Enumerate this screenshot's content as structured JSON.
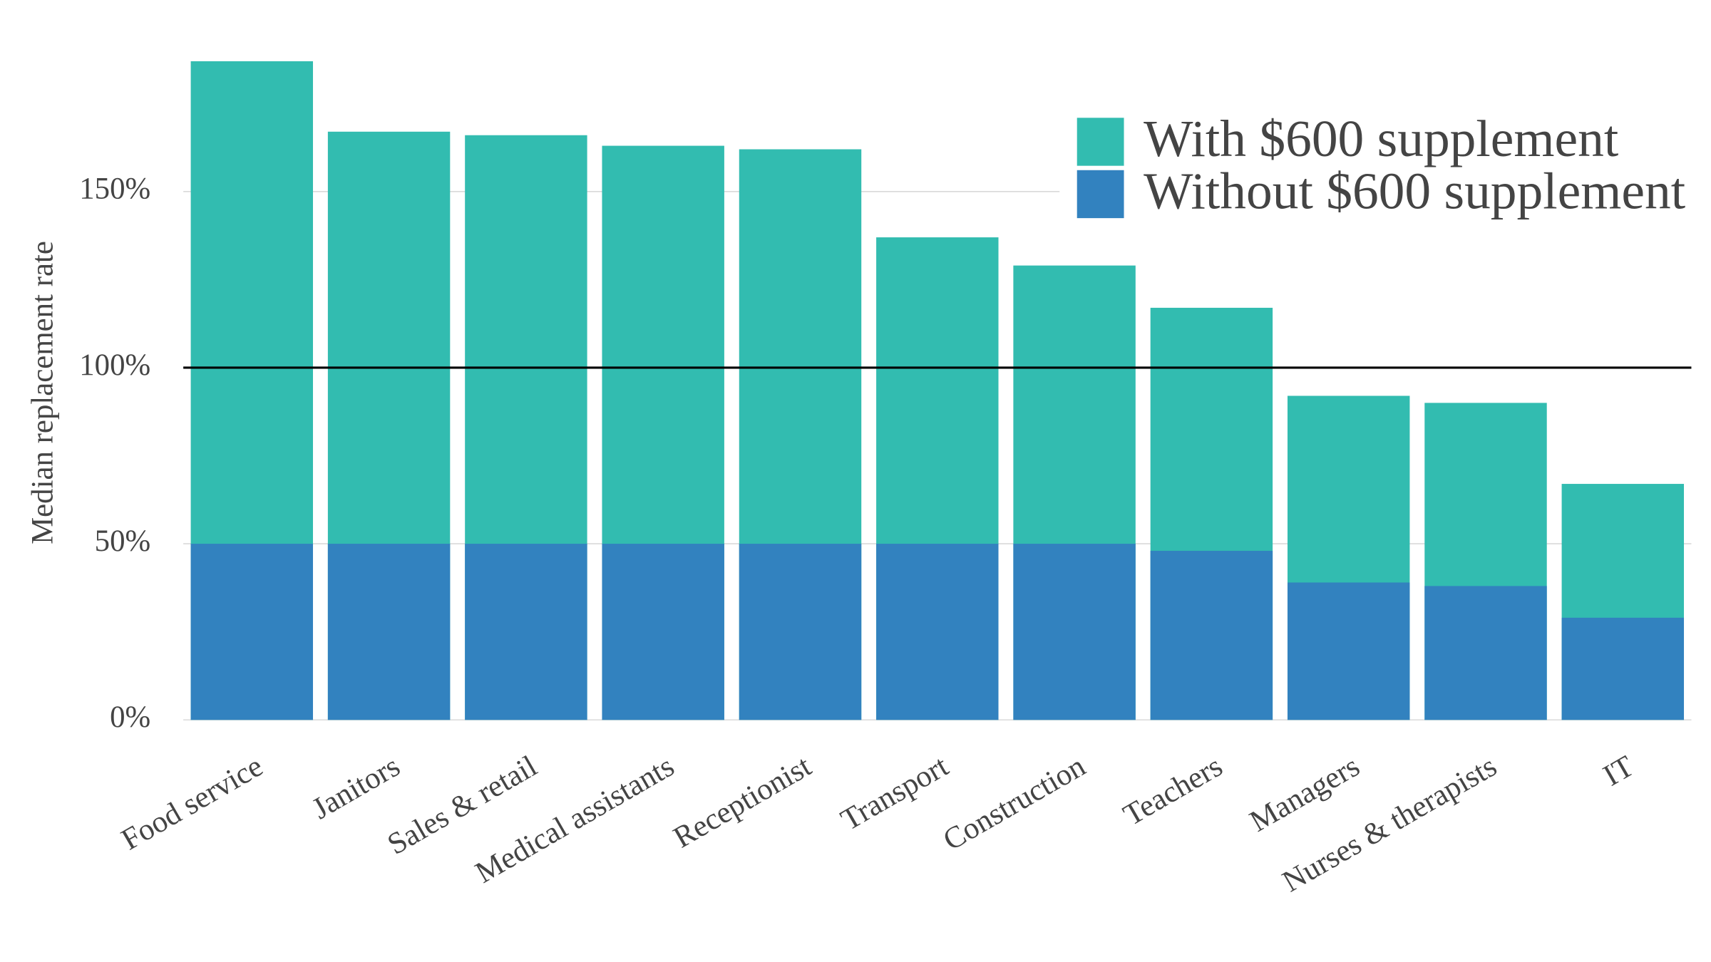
{
  "chart_data": {
    "type": "bar",
    "y_label": "Median replacement rate",
    "categories": [
      "Food service",
      "Janitors",
      "Sales & retail",
      "Medical assistants",
      "Receptionist",
      "Transport",
      "Construction",
      "Teachers",
      "Managers",
      "Nurses & therapists",
      "IT"
    ],
    "series": [
      {
        "name": "With $600 supplement",
        "color": "#32bcb0",
        "values": [
          187,
          167,
          166,
          163,
          162,
          137,
          129,
          117,
          92,
          90,
          67
        ]
      },
      {
        "name": "Without $600 supplement",
        "color": "#3282bf",
        "values": [
          50,
          50,
          50,
          50,
          50,
          50,
          50,
          48,
          39,
          38,
          29
        ]
      }
    ],
    "ylim": [
      0,
      192
    ],
    "yticks": [
      {
        "value": 0,
        "label": "0%"
      },
      {
        "value": 50,
        "label": "50%"
      },
      {
        "value": 100,
        "label": "100%"
      },
      {
        "value": 150,
        "label": "150%"
      }
    ],
    "reference_line": 100,
    "grid": true,
    "legend": "top-right"
  }
}
